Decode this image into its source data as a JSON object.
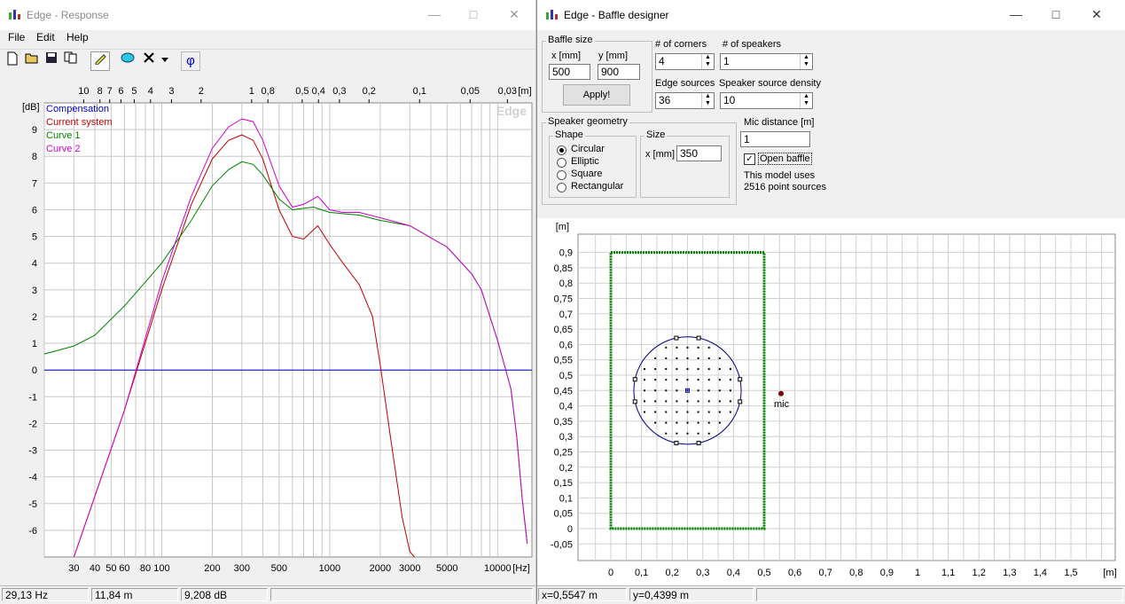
{
  "response": {
    "title": "Edge - Response",
    "menu": [
      "File",
      "Edit",
      "Help"
    ],
    "toolbar_icons": [
      "new-file-icon",
      "open-folder-icon",
      "save-icon",
      "copy-icon",
      "pencil-icon",
      "color-fill-icon",
      "delete-icon",
      "dropdown-arrow-icon",
      "phase-icon"
    ],
    "phase_symbol": "φ",
    "watermark": "Edge",
    "status": {
      "freq": "29,13 Hz",
      "dist": "11,84 m",
      "level": "9,208 dB"
    },
    "chart": {
      "top_axis_labels": [
        "10",
        "8",
        "7",
        "6",
        "5",
        "4",
        "3",
        "2",
        "1",
        "0,8",
        "0,5",
        "0,4",
        "0,3",
        "0,2",
        "0,1",
        "0,05",
        "0,03",
        "[m]"
      ],
      "x_labels": [
        "30",
        "40",
        "50",
        "60",
        "80",
        "100",
        "200",
        "300",
        "500",
        "1000",
        "2000",
        "3000",
        "5000",
        "10000",
        "[Hz]"
      ],
      "y_unit": "[dB]",
      "y_labels": [
        "9",
        "8",
        "7",
        "6",
        "5",
        "4",
        "3",
        "2",
        "1",
        "0",
        "-1",
        "-2",
        "-3",
        "-4",
        "-5",
        "-6"
      ]
    }
  },
  "chart_data": {
    "type": "line",
    "title": "",
    "xlabel": "[Hz]",
    "ylabel": "[dB]",
    "x_scale": "log",
    "xlim": [
      20,
      16000
    ],
    "ylim": [
      -7,
      10
    ],
    "grid": true,
    "legend_position": "top-left",
    "series": [
      {
        "name": "Compensation",
        "color": "#0000c0",
        "x": [
          20,
          16000
        ],
        "y": [
          0,
          0
        ]
      },
      {
        "name": "Current system",
        "color": "#c00000",
        "x": [
          30,
          60,
          100,
          150,
          200,
          250,
          300,
          350,
          400,
          500,
          600,
          700,
          850,
          1000,
          1200,
          1500,
          1800,
          2000,
          2300,
          2700,
          3000,
          3200
        ],
        "y": [
          -7.0,
          -1.5,
          3.0,
          6.2,
          7.9,
          8.6,
          8.8,
          8.6,
          7.9,
          6.0,
          5.0,
          4.9,
          5.4,
          4.7,
          4.0,
          3.2,
          2.0,
          0.2,
          -2.5,
          -5.5,
          -6.8,
          -7.0
        ]
      },
      {
        "name": "Curve 1",
        "color": "#008000",
        "x": [
          20,
          30,
          40,
          60,
          80,
          100,
          150,
          200,
          250,
          300,
          350,
          400,
          500,
          600,
          800,
          1000,
          1500,
          2000,
          3000,
          5000,
          7000,
          8000,
          10000,
          12000,
          13000,
          14000,
          15000
        ],
        "y": [
          0.6,
          0.9,
          1.3,
          2.4,
          3.3,
          4.0,
          5.6,
          6.9,
          7.5,
          7.8,
          7.7,
          7.3,
          6.4,
          6.0,
          6.1,
          5.9,
          5.8,
          5.6,
          5.4,
          4.6,
          3.6,
          3.0,
          1.1,
          -0.7,
          -2.5,
          -4.8,
          -6.5
        ]
      },
      {
        "name": "Curve 2",
        "color": "#d000d0",
        "x": [
          30,
          60,
          100,
          150,
          200,
          250,
          300,
          350,
          400,
          500,
          600,
          700,
          850,
          1000,
          1200,
          1500,
          2000,
          3000,
          5000,
          7000,
          8000,
          10000,
          12000,
          13000,
          14000,
          15000
        ],
        "y": [
          -7.0,
          -1.5,
          3.3,
          6.5,
          8.3,
          9.1,
          9.4,
          9.3,
          8.6,
          6.9,
          6.1,
          6.2,
          6.5,
          6.0,
          5.9,
          5.9,
          5.7,
          5.4,
          4.6,
          3.6,
          3.0,
          1.1,
          -0.7,
          -2.5,
          -4.8,
          -6.5
        ]
      }
    ]
  },
  "baffle": {
    "title": "Edge - Baffle designer",
    "baffle_size": {
      "legend": "Baffle size",
      "x_label": "x [mm]",
      "y_label": "y [mm]",
      "x_value": "500",
      "y_value": "900",
      "apply_label": "Apply!"
    },
    "corners": {
      "label": "# of corners",
      "value": "4"
    },
    "speakers": {
      "label": "# of speakers",
      "value": "1"
    },
    "edge_sources": {
      "label": "Edge sources",
      "value": "36"
    },
    "source_density": {
      "label": "Speaker source density",
      "value": "10"
    },
    "geometry": {
      "legend": "Speaker geometry",
      "shape_legend": "Shape",
      "shapes": [
        "Circular",
        "Elliptic",
        "Square",
        "Rectangular"
      ],
      "selected": 0,
      "size_legend": "Size",
      "size_label": "x [mm]",
      "size_value": "350"
    },
    "mic_distance": {
      "label": "Mic distance [m]",
      "value": "1"
    },
    "open_baffle": {
      "label": "Open baffle",
      "checked": true
    },
    "info_line1": "This model uses",
    "info_line2": "2516 point sources",
    "plot": {
      "y_unit": "[m]",
      "x_unit": "[m]",
      "y_labels": [
        "0,9",
        "0,85",
        "0,8",
        "0,75",
        "0,7",
        "0,65",
        "0,6",
        "0,55",
        "0,5",
        "0,45",
        "0,4",
        "0,35",
        "0,3",
        "0,25",
        "0,2",
        "0,15",
        "0,1",
        "0,05",
        "0",
        "-0,05"
      ],
      "x_labels": [
        "0",
        "0,1",
        "0,2",
        "0,3",
        "0,4",
        "0,5",
        "0,6",
        "0,7",
        "0,8",
        "0,9",
        "1",
        "1,1",
        "1,2",
        "1,3",
        "1,4",
        "1,5"
      ],
      "mic_label": "mic",
      "baffle_w_m": 0.5,
      "baffle_h_m": 0.9,
      "speaker_center_m": [
        0.25,
        0.45
      ],
      "speaker_radius_m": 0.175,
      "mic_pos_m": [
        0.555,
        0.44
      ]
    },
    "status": {
      "x": "x=0,5547 m",
      "y": "y=0,4399 m"
    }
  }
}
